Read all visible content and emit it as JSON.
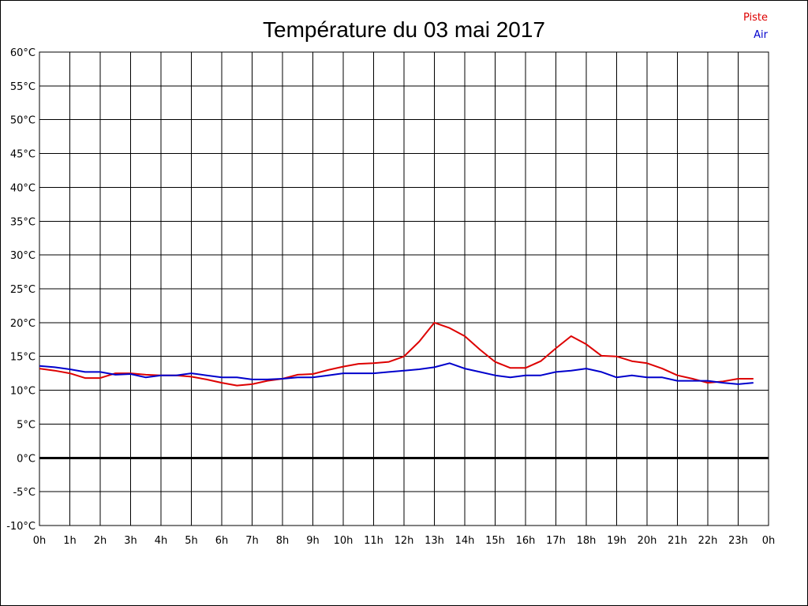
{
  "chart_data": {
    "type": "line",
    "title": "Température du 03 mai 2017",
    "ylim": [
      -10,
      60
    ],
    "y_ticks": [
      "60°C",
      "55°C",
      "50°C",
      "45°C",
      "40°C",
      "35°C",
      "30°C",
      "25°C",
      "20°C",
      "15°C",
      "10°C",
      "5°C",
      "0°C",
      "-5°C",
      "-10°C"
    ],
    "y_tick_values": [
      60,
      55,
      50,
      45,
      40,
      35,
      30,
      25,
      20,
      15,
      10,
      5,
      0,
      -5,
      -10
    ],
    "xlim": [
      0,
      24
    ],
    "x_ticks": [
      "0h",
      "1h",
      "2h",
      "3h",
      "4h",
      "5h",
      "6h",
      "7h",
      "8h",
      "9h",
      "10h",
      "11h",
      "12h",
      "13h",
      "14h",
      "15h",
      "16h",
      "17h",
      "18h",
      "19h",
      "20h",
      "21h",
      "22h",
      "23h",
      "0h"
    ],
    "x": [
      0,
      0.5,
      1,
      1.5,
      2,
      2.5,
      3,
      3.5,
      4,
      4.5,
      5,
      5.5,
      6,
      6.5,
      7,
      7.5,
      8,
      8.5,
      9,
      9.5,
      10,
      10.5,
      11,
      11.5,
      12,
      12.5,
      13,
      13.5,
      14,
      14.5,
      15,
      15.5,
      16,
      16.5,
      17,
      17.5,
      18,
      18.5,
      19,
      19.5,
      20,
      20.5,
      21,
      21.5,
      22,
      22.5,
      23,
      23.5
    ],
    "series": [
      {
        "name": "Piste",
        "color": "#dd0000",
        "values": [
          13.2,
          12.9,
          12.5,
          11.8,
          11.8,
          12.5,
          12.5,
          12.3,
          12.2,
          12.2,
          12.0,
          11.6,
          11.1,
          10.7,
          10.9,
          11.4,
          11.7,
          12.3,
          12.4,
          13.0,
          13.5,
          13.9,
          14.0,
          14.2,
          15.0,
          17.2,
          20.0,
          19.2,
          18.0,
          16.0,
          14.2,
          13.3,
          13.3,
          14.3,
          16.2,
          18.0,
          16.8,
          15.1,
          15.0,
          14.3,
          14.0,
          13.2,
          12.2,
          11.7,
          11.1,
          11.3,
          11.7,
          11.7
        ]
      },
      {
        "name": "Air",
        "color": "#0000cc",
        "values": [
          13.6,
          13.4,
          13.1,
          12.7,
          12.7,
          12.3,
          12.4,
          11.9,
          12.2,
          12.2,
          12.5,
          12.2,
          11.9,
          11.9,
          11.6,
          11.6,
          11.7,
          11.9,
          11.9,
          12.2,
          12.5,
          12.5,
          12.5,
          12.7,
          12.9,
          13.1,
          13.4,
          14.0,
          13.2,
          12.7,
          12.2,
          11.9,
          12.2,
          12.2,
          12.7,
          12.9,
          13.2,
          12.7,
          11.9,
          12.2,
          11.9,
          11.9,
          11.4,
          11.4,
          11.4,
          11.1,
          10.9,
          11.1
        ]
      }
    ],
    "grid": true,
    "legend": "top-right"
  }
}
